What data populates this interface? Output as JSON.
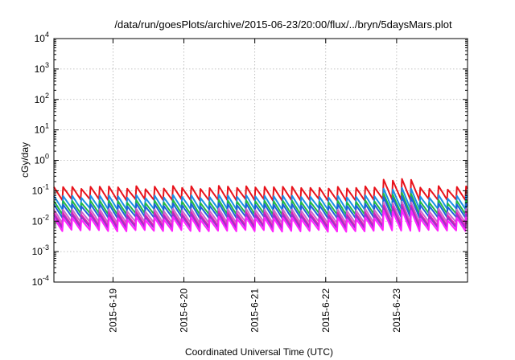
{
  "chart_data": {
    "type": "line",
    "title": "/data/run/goesPlots/archive/2015-06-23/20:00/flux/../bryn/5daysMars.plot",
    "xlabel": "Coordinated Universal Time (UTC)",
    "ylabel": "cGy/day",
    "yscale": "log",
    "ylim": [
      0.0001,
      10000
    ],
    "xlim": [
      "2015-06-18 04:00",
      "2015-06-23 20:00"
    ],
    "grid": true,
    "legend": "none",
    "yticks": [
      {
        "value": 0.0001,
        "base": "10",
        "exp": "-4"
      },
      {
        "value": 0.001,
        "base": "10",
        "exp": "-3"
      },
      {
        "value": 0.01,
        "base": "10",
        "exp": "-2"
      },
      {
        "value": 0.1,
        "base": "10",
        "exp": "-1"
      },
      {
        "value": 1,
        "base": "10",
        "exp": "0"
      },
      {
        "value": 10,
        "base": "10",
        "exp": "1"
      },
      {
        "value": 100,
        "base": "10",
        "exp": "2"
      },
      {
        "value": 1000,
        "base": "10",
        "exp": "3"
      },
      {
        "value": 10000,
        "base": "10",
        "exp": "4"
      }
    ],
    "xticks": [
      "2015-6-19",
      "2015-6-20",
      "2015-6-21",
      "2015-6-22",
      "2015-6-23"
    ],
    "xtick_hours": [
      20,
      44,
      68,
      92,
      116
    ],
    "x_hours_start": 0,
    "x_hours_end": 140,
    "sawtooth_period_hours": 3.1,
    "series": [
      {
        "color": "#e8121b",
        "base": 0.075
      },
      {
        "color": "#1a8fe6",
        "base": 0.038
      },
      {
        "color": "#22bb44",
        "base": 0.026
      },
      {
        "color": "#1e60dd",
        "base": 0.02
      },
      {
        "color": "#cc66cc",
        "base": 0.0135
      },
      {
        "color": "#e41fb3",
        "base": 0.0105
      },
      {
        "color": "#9933cc",
        "base": 0.009
      },
      {
        "color": "#ff22ff",
        "base": 0.0072
      }
    ]
  }
}
